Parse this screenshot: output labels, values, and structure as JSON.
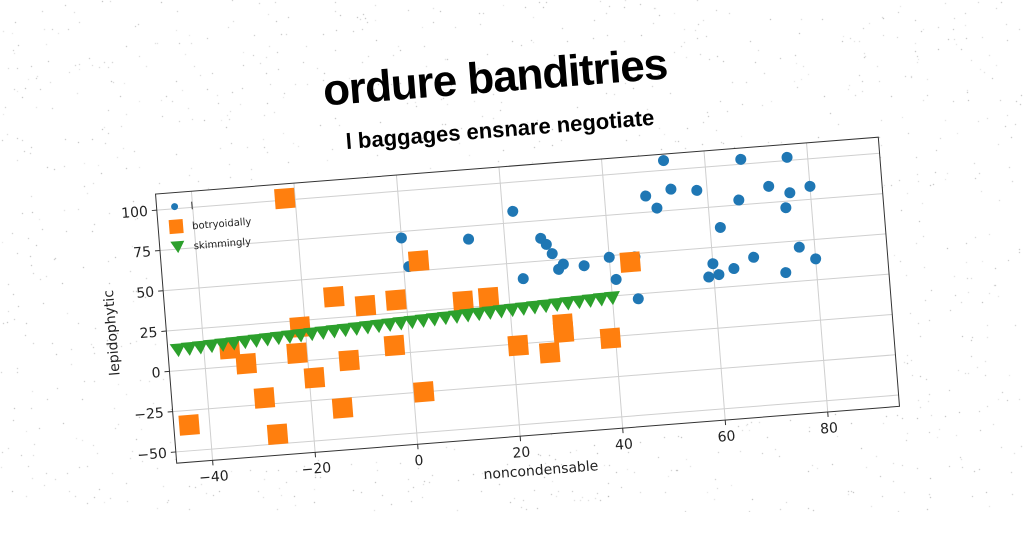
{
  "title": "ordure banditries",
  "subtitle": "l baggages ensnare negotiate",
  "chart_data": {
    "type": "scatter",
    "xlabel": "noncondensable",
    "ylabel": "lepidophytic",
    "xlim": [
      -47,
      94
    ],
    "ylim": [
      -57,
      110
    ],
    "xticks": [
      -40,
      -20,
      0,
      20,
      40,
      60,
      80
    ],
    "yticks": [
      -50,
      -25,
      0,
      25,
      50,
      75,
      100
    ],
    "grid": true,
    "legend_position": "upper-left",
    "colors": {
      "blue": "#1f77b4",
      "orange": "#ff7f0e",
      "green": "#2ca02c"
    },
    "series": [
      {
        "name": "l",
        "marker": "circle",
        "color": "#1f77b4",
        "points": [
          [
            1,
            53
          ],
          [
            2,
            54
          ],
          [
            0,
            71
          ],
          [
            13,
            67
          ],
          [
            22,
            82
          ],
          [
            23,
            40
          ],
          [
            27,
            64
          ],
          [
            28,
            60
          ],
          [
            29,
            54
          ],
          [
            30,
            44
          ],
          [
            31,
            47
          ],
          [
            35,
            45
          ],
          [
            40,
            49
          ],
          [
            41,
            35
          ],
          [
            45,
            48
          ],
          [
            45,
            22
          ],
          [
            48,
            85
          ],
          [
            50,
            77
          ],
          [
            52,
            106
          ],
          [
            53,
            88
          ],
          [
            58,
            86
          ],
          [
            59,
            32
          ],
          [
            60,
            40
          ],
          [
            61,
            33
          ],
          [
            62,
            62
          ],
          [
            64,
            36
          ],
          [
            66,
            78
          ],
          [
            67,
            103
          ],
          [
            68,
            42
          ],
          [
            72,
            85
          ],
          [
            74,
            31
          ],
          [
            75,
            71
          ],
          [
            76,
            80
          ],
          [
            76,
            102
          ],
          [
            77,
            46
          ],
          [
            80,
            38
          ],
          [
            80,
            83
          ]
        ]
      },
      {
        "name": "botryoidally",
        "marker": "square",
        "color": "#ff7f0e",
        "points": [
          [
            -22,
            101
          ],
          [
            -14,
            38
          ],
          [
            -8,
            31
          ],
          [
            -44,
            -34
          ],
          [
            -35,
            11
          ],
          [
            -32,
            1
          ],
          [
            -29,
            -21
          ],
          [
            -27,
            -44
          ],
          [
            -22,
            5
          ],
          [
            -21,
            21
          ],
          [
            -19,
            -11
          ],
          [
            -14,
            -31
          ],
          [
            -12,
            -2
          ],
          [
            -2,
            33
          ],
          [
            -3,
            5
          ],
          [
            3,
            56
          ],
          [
            2,
            -25
          ],
          [
            11,
            29
          ],
          [
            16,
            30
          ],
          [
            21,
            -1
          ],
          [
            27,
            -7
          ],
          [
            30,
            5
          ],
          [
            30,
            10
          ],
          [
            39,
            -1
          ],
          [
            44,
            45
          ]
        ]
      },
      {
        "name": "skimmingly",
        "marker": "triangle-down",
        "color": "#2ca02c",
        "line": {
          "x_start": -45,
          "x_end": 40,
          "y_start": 13,
          "y_end": 24,
          "count": 40
        }
      }
    ]
  }
}
